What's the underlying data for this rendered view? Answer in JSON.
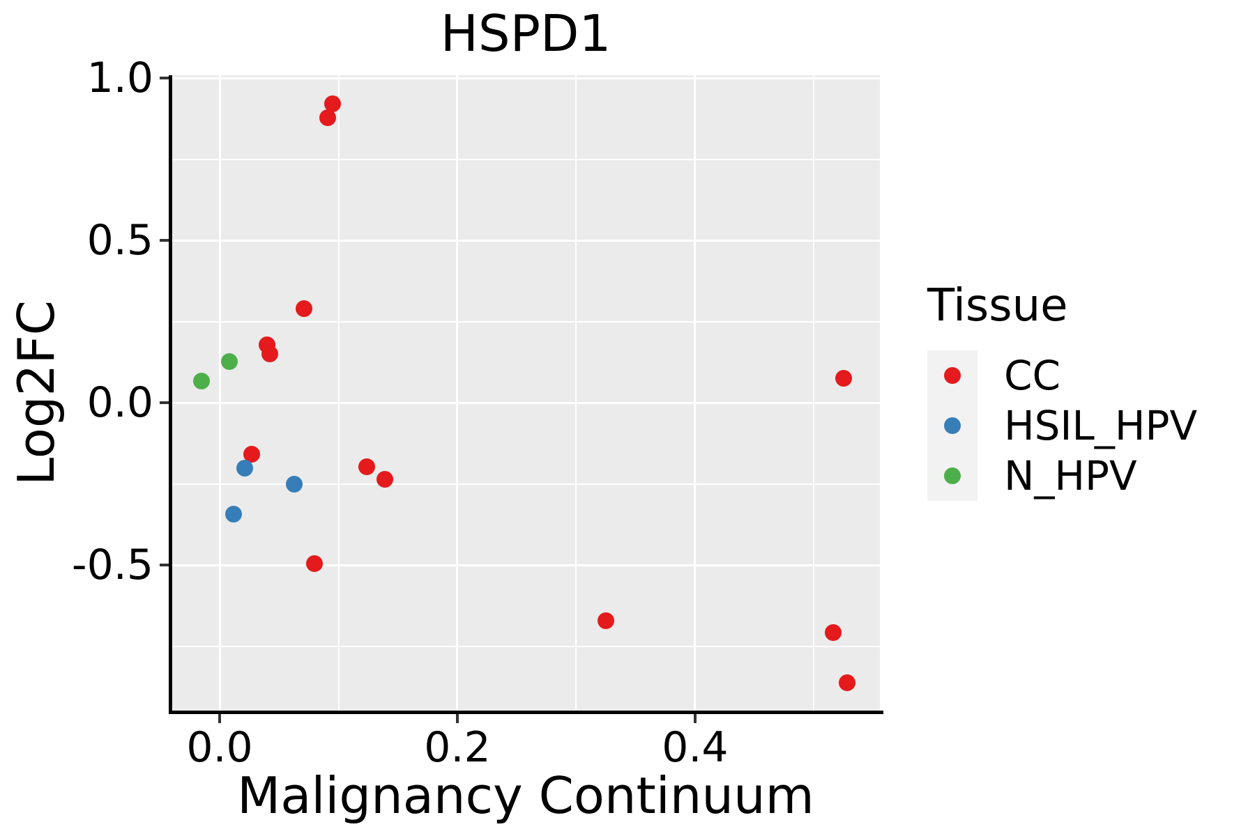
{
  "chart_data": {
    "type": "scatter",
    "title": "HSPD1",
    "xlabel": "Malignancy Continuum",
    "ylabel": "Log2FC",
    "xlim": [
      -0.0405,
      0.5555
    ],
    "ylim": [
      -0.948,
      1.009
    ],
    "x_ticks": {
      "values": [
        0.0,
        0.2,
        0.4
      ],
      "labels": [
        "0.0",
        "0.2",
        "0.4"
      ]
    },
    "y_ticks": {
      "values": [
        1.0,
        0.5,
        0.0,
        -0.5
      ],
      "labels": [
        "1.0",
        "0.5",
        "0.0",
        "-0.5"
      ]
    },
    "x_minor_gridlines": [
      0.1,
      0.3,
      0.5
    ],
    "y_minor_gridlines": [
      0.75,
      0.25,
      -0.25,
      -0.75
    ],
    "grid": "major-and-minor-white",
    "panel_background": "#EBEBEB",
    "gridline_color": "#FFFFFF",
    "axis_line_color": "#000000",
    "point_colors": {
      "CC": "#E41A1C",
      "HSIL_HPV": "#377EB8",
      "N_HPV": "#4DAF4A"
    },
    "legend": {
      "title": "Tissue",
      "position": "right",
      "key_fill": "#F2F2F2"
    },
    "series": [
      {
        "name": "CC",
        "color": "#E41A1C",
        "points": [
          [
            0.095,
            0.92
          ],
          [
            0.091,
            0.878
          ],
          [
            0.071,
            0.29
          ],
          [
            0.04,
            0.178
          ],
          [
            0.042,
            0.15
          ],
          [
            0.027,
            -0.158
          ],
          [
            0.124,
            -0.196
          ],
          [
            0.139,
            -0.235
          ],
          [
            0.08,
            -0.495
          ],
          [
            0.325,
            -0.671
          ],
          [
            0.525,
            0.075
          ],
          [
            0.516,
            -0.708
          ],
          [
            0.528,
            -0.863
          ]
        ]
      },
      {
        "name": "HSIL_HPV",
        "color": "#377EB8",
        "points": [
          [
            0.021,
            -0.202
          ],
          [
            0.063,
            -0.25
          ],
          [
            0.012,
            -0.342
          ]
        ]
      },
      {
        "name": "N_HPV",
        "color": "#4DAF4A",
        "points": [
          [
            0.008,
            0.126
          ],
          [
            -0.015,
            0.066
          ]
        ]
      }
    ]
  }
}
